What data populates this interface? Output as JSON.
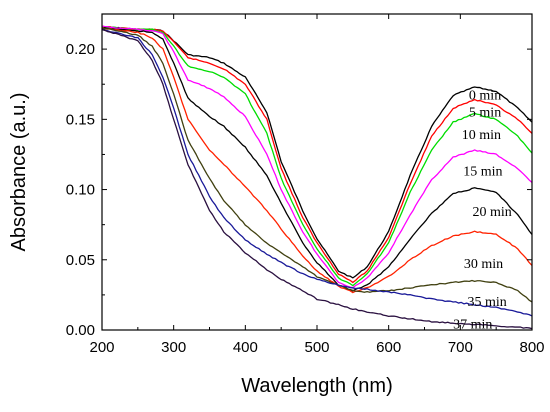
{
  "chart_data": {
    "type": "line",
    "xlabel": "Wavelength (nm)",
    "ylabel": "Absorbance (a.u.)",
    "xlim": [
      200,
      800
    ],
    "ylim": [
      0,
      0.225
    ],
    "xticks": [
      "200",
      "300",
      "400",
      "500",
      "600",
      "700",
      "800"
    ],
    "yticks": [
      "0.00",
      "0.05",
      "0.10",
      "0.15",
      "0.20"
    ],
    "grid": false,
    "series": [
      {
        "name": "0 min",
        "color": "#000000",
        "points": [
          [
            200,
            0.216
          ],
          [
            250,
            0.214
          ],
          [
            270,
            0.214
          ],
          [
            285,
            0.213
          ],
          [
            300,
            0.206
          ],
          [
            320,
            0.196
          ],
          [
            350,
            0.194
          ],
          [
            370,
            0.19
          ],
          [
            400,
            0.18
          ],
          [
            430,
            0.155
          ],
          [
            450,
            0.12
          ],
          [
            480,
            0.085
          ],
          [
            500,
            0.065
          ],
          [
            530,
            0.042
          ],
          [
            550,
            0.037
          ],
          [
            570,
            0.045
          ],
          [
            600,
            0.07
          ],
          [
            630,
            0.11
          ],
          [
            660,
            0.145
          ],
          [
            690,
            0.167
          ],
          [
            720,
            0.173
          ],
          [
            750,
            0.17
          ],
          [
            780,
            0.158
          ],
          [
            800,
            0.148
          ]
        ]
      },
      {
        "name": "5 min",
        "color": "#ff0000",
        "points": [
          [
            200,
            0.216
          ],
          [
            250,
            0.214
          ],
          [
            270,
            0.214
          ],
          [
            285,
            0.213
          ],
          [
            300,
            0.205
          ],
          [
            320,
            0.194
          ],
          [
            350,
            0.19
          ],
          [
            370,
            0.186
          ],
          [
            400,
            0.175
          ],
          [
            430,
            0.15
          ],
          [
            450,
            0.115
          ],
          [
            480,
            0.08
          ],
          [
            500,
            0.062
          ],
          [
            530,
            0.04
          ],
          [
            550,
            0.034
          ],
          [
            570,
            0.042
          ],
          [
            600,
            0.066
          ],
          [
            630,
            0.104
          ],
          [
            660,
            0.138
          ],
          [
            690,
            0.158
          ],
          [
            720,
            0.164
          ],
          [
            750,
            0.16
          ],
          [
            780,
            0.15
          ],
          [
            800,
            0.14
          ]
        ]
      },
      {
        "name": "10 min",
        "color": "#00dd00",
        "points": [
          [
            200,
            0.216
          ],
          [
            250,
            0.214
          ],
          [
            270,
            0.214
          ],
          [
            285,
            0.212
          ],
          [
            300,
            0.202
          ],
          [
            320,
            0.188
          ],
          [
            350,
            0.184
          ],
          [
            370,
            0.18
          ],
          [
            400,
            0.168
          ],
          [
            430,
            0.14
          ],
          [
            450,
            0.108
          ],
          [
            480,
            0.075
          ],
          [
            500,
            0.058
          ],
          [
            530,
            0.037
          ],
          [
            550,
            0.032
          ],
          [
            570,
            0.04
          ],
          [
            600,
            0.062
          ],
          [
            630,
            0.098
          ],
          [
            660,
            0.128
          ],
          [
            690,
            0.148
          ],
          [
            720,
            0.154
          ],
          [
            750,
            0.15
          ],
          [
            780,
            0.138
          ],
          [
            800,
            0.126
          ]
        ]
      },
      {
        "name": "15 min",
        "color": "#ff00ff",
        "points": [
          [
            200,
            0.216
          ],
          [
            250,
            0.214
          ],
          [
            270,
            0.213
          ],
          [
            285,
            0.211
          ],
          [
            300,
            0.198
          ],
          [
            320,
            0.178
          ],
          [
            350,
            0.172
          ],
          [
            370,
            0.166
          ],
          [
            400,
            0.152
          ],
          [
            430,
            0.125
          ],
          [
            450,
            0.1
          ],
          [
            480,
            0.07
          ],
          [
            500,
            0.054
          ],
          [
            530,
            0.034
          ],
          [
            550,
            0.03
          ],
          [
            570,
            0.037
          ],
          [
            600,
            0.055
          ],
          [
            630,
            0.082
          ],
          [
            660,
            0.107
          ],
          [
            690,
            0.123
          ],
          [
            720,
            0.128
          ],
          [
            750,
            0.125
          ],
          [
            780,
            0.115
          ],
          [
            800,
            0.105
          ]
        ]
      },
      {
        "name": "20 min",
        "color": "#000000",
        "points": [
          [
            200,
            0.215
          ],
          [
            250,
            0.213
          ],
          [
            270,
            0.212
          ],
          [
            285,
            0.207
          ],
          [
            300,
            0.19
          ],
          [
            320,
            0.165
          ],
          [
            350,
            0.152
          ],
          [
            370,
            0.145
          ],
          [
            400,
            0.13
          ],
          [
            430,
            0.11
          ],
          [
            450,
            0.09
          ],
          [
            480,
            0.062
          ],
          [
            500,
            0.048
          ],
          [
            530,
            0.032
          ],
          [
            550,
            0.028
          ],
          [
            570,
            0.032
          ],
          [
            600,
            0.045
          ],
          [
            630,
            0.065
          ],
          [
            660,
            0.083
          ],
          [
            690,
            0.097
          ],
          [
            720,
            0.101
          ],
          [
            750,
            0.098
          ],
          [
            780,
            0.082
          ],
          [
            800,
            0.068
          ]
        ]
      },
      {
        "name": "",
        "color": "#ff2200",
        "points": [
          [
            200,
            0.215
          ],
          [
            250,
            0.212
          ],
          [
            270,
            0.208
          ],
          [
            285,
            0.2
          ],
          [
            300,
            0.18
          ],
          [
            320,
            0.15
          ],
          [
            350,
            0.128
          ],
          [
            370,
            0.118
          ],
          [
            400,
            0.102
          ],
          [
            430,
            0.085
          ],
          [
            450,
            0.072
          ],
          [
            480,
            0.053
          ],
          [
            500,
            0.042
          ],
          [
            530,
            0.031
          ],
          [
            550,
            0.027
          ],
          [
            570,
            0.03
          ],
          [
            600,
            0.038
          ],
          [
            630,
            0.05
          ],
          [
            660,
            0.06
          ],
          [
            690,
            0.067
          ],
          [
            720,
            0.07
          ],
          [
            750,
            0.068
          ],
          [
            780,
            0.058
          ],
          [
            800,
            0.046
          ]
        ]
      },
      {
        "name": "30 min",
        "color": "#404010",
        "points": [
          [
            200,
            0.215
          ],
          [
            250,
            0.21
          ],
          [
            270,
            0.202
          ],
          [
            285,
            0.19
          ],
          [
            300,
            0.168
          ],
          [
            320,
            0.135
          ],
          [
            350,
            0.108
          ],
          [
            370,
            0.092
          ],
          [
            400,
            0.075
          ],
          [
            430,
            0.062
          ],
          [
            450,
            0.055
          ],
          [
            480,
            0.045
          ],
          [
            500,
            0.038
          ],
          [
            530,
            0.032
          ],
          [
            550,
            0.028
          ],
          [
            570,
            0.027
          ],
          [
            600,
            0.028
          ],
          [
            630,
            0.03
          ],
          [
            660,
            0.032
          ],
          [
            690,
            0.034
          ],
          [
            720,
            0.035
          ],
          [
            750,
            0.034
          ],
          [
            780,
            0.028
          ],
          [
            800,
            0.02
          ]
        ]
      },
      {
        "name": "35 min",
        "color": "#1a1a99",
        "points": [
          [
            200,
            0.214
          ],
          [
            250,
            0.208
          ],
          [
            270,
            0.196
          ],
          [
            285,
            0.18
          ],
          [
            300,
            0.158
          ],
          [
            320,
            0.125
          ],
          [
            350,
            0.095
          ],
          [
            370,
            0.08
          ],
          [
            400,
            0.064
          ],
          [
            430,
            0.054
          ],
          [
            450,
            0.048
          ],
          [
            480,
            0.04
          ],
          [
            500,
            0.036
          ],
          [
            530,
            0.032
          ],
          [
            550,
            0.03
          ],
          [
            570,
            0.029
          ],
          [
            600,
            0.027
          ],
          [
            630,
            0.025
          ],
          [
            660,
            0.022
          ],
          [
            690,
            0.02
          ],
          [
            720,
            0.018
          ],
          [
            750,
            0.016
          ],
          [
            780,
            0.013
          ],
          [
            800,
            0.01
          ]
        ]
      },
      {
        "name": "37 min",
        "color": "#2a1040",
        "points": [
          [
            200,
            0.214
          ],
          [
            250,
            0.206
          ],
          [
            270,
            0.192
          ],
          [
            285,
            0.175
          ],
          [
            300,
            0.15
          ],
          [
            320,
            0.118
          ],
          [
            350,
            0.085
          ],
          [
            370,
            0.07
          ],
          [
            400,
            0.055
          ],
          [
            430,
            0.043
          ],
          [
            450,
            0.036
          ],
          [
            480,
            0.028
          ],
          [
            500,
            0.022
          ],
          [
            530,
            0.018
          ],
          [
            550,
            0.015
          ],
          [
            570,
            0.013
          ],
          [
            600,
            0.01
          ],
          [
            630,
            0.008
          ],
          [
            660,
            0.006
          ],
          [
            690,
            0.005
          ],
          [
            720,
            0.004
          ],
          [
            750,
            0.003
          ],
          [
            780,
            0.002
          ],
          [
            800,
            0.001
          ]
        ]
      }
    ],
    "labels": [
      {
        "text": "0 min",
        "x": 712,
        "y": 0.164
      },
      {
        "text": "5 min",
        "x": 712,
        "y": 0.152
      },
      {
        "text": "10 min",
        "x": 702,
        "y": 0.136
      },
      {
        "text": "15 min",
        "x": 704,
        "y": 0.11
      },
      {
        "text": "20 min",
        "x": 717,
        "y": 0.081
      },
      {
        "text": "30 min",
        "x": 705,
        "y": 0.044
      },
      {
        "text": "35 min",
        "x": 710,
        "y": 0.017
      },
      {
        "text": "37 min",
        "x": 690,
        "y": 0.001
      }
    ]
  }
}
